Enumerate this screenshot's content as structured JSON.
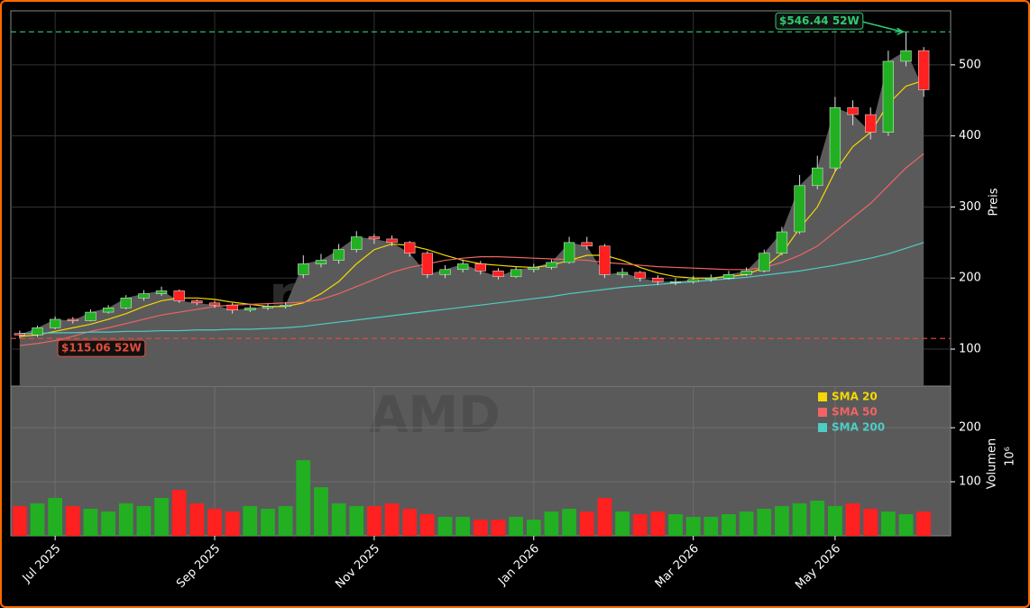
{
  "chart_data": {
    "type": "candlestick",
    "categories": [
      null,
      null,
      "Jul 2025",
      null,
      null,
      null,
      null,
      null,
      null,
      null,
      null,
      "Sep 2025",
      null,
      null,
      null,
      null,
      null,
      null,
      null,
      null,
      "Nov 2025",
      null,
      null,
      null,
      null,
      null,
      null,
      null,
      null,
      "Jan 2026",
      null,
      null,
      null,
      null,
      null,
      null,
      null,
      null,
      "Mar 2026",
      null,
      null,
      null,
      null,
      null,
      null,
      null,
      "May 2026",
      null,
      null,
      null,
      null,
      null
    ],
    "open": [
      122,
      120,
      130,
      142,
      140,
      152,
      158,
      172,
      178,
      182,
      168,
      165,
      162,
      155,
      158,
      160,
      205,
      220,
      225,
      240,
      258,
      255,
      250,
      235,
      205,
      212,
      220,
      210,
      202,
      212,
      215,
      222,
      250,
      245,
      205,
      208,
      200,
      195,
      195,
      198,
      200,
      205,
      210,
      235,
      265,
      330,
      355,
      440,
      430,
      405,
      505,
      520
    ],
    "high": [
      126,
      133,
      146,
      145,
      156,
      162,
      176,
      183,
      188,
      184,
      170,
      168,
      165,
      162,
      164,
      166,
      232,
      234,
      248,
      266,
      262,
      260,
      252,
      238,
      218,
      226,
      224,
      214,
      216,
      220,
      226,
      258,
      258,
      248,
      214,
      210,
      204,
      200,
      203,
      205,
      210,
      215,
      240,
      272,
      345,
      372,
      455,
      450,
      440,
      520,
      546.44,
      525
    ],
    "low": [
      115.06,
      117,
      128,
      136,
      139,
      150,
      156,
      168,
      175,
      165,
      162,
      158,
      150,
      152,
      155,
      157,
      200,
      215,
      220,
      236,
      248,
      245,
      230,
      200,
      200,
      208,
      205,
      198,
      200,
      208,
      212,
      220,
      240,
      200,
      200,
      195,
      190,
      190,
      192,
      195,
      198,
      203,
      208,
      232,
      262,
      325,
      350,
      415,
      395,
      400,
      498,
      455
    ],
    "close": [
      120,
      130,
      142,
      140,
      152,
      158,
      172,
      178,
      182,
      168,
      165,
      162,
      155,
      158,
      160,
      162,
      220,
      225,
      240,
      258,
      255,
      250,
      235,
      205,
      212,
      220,
      210,
      202,
      212,
      215,
      222,
      250,
      245,
      205,
      208,
      200,
      195,
      195,
      198,
      200,
      205,
      210,
      235,
      265,
      330,
      355,
      440,
      430,
      405,
      505,
      520,
      465
    ],
    "up_color": "#22b022",
    "down_color": "#ff2020",
    "area_color": "#5a5a5a",
    "series": [
      {
        "name": "SMA 20",
        "color": "#f5d800",
        "values": [
          118,
          120,
          125,
          130,
          135,
          142,
          150,
          160,
          168,
          172,
          172,
          170,
          166,
          163,
          160,
          160,
          165,
          178,
          195,
          220,
          240,
          248,
          246,
          240,
          232,
          225,
          220,
          218,
          216,
          215,
          218,
          225,
          232,
          232,
          225,
          215,
          207,
          202,
          200,
          200,
          202,
          205,
          215,
          235,
          270,
          300,
          350,
          385,
          405,
          445,
          470,
          478
        ]
      },
      {
        "name": "SMA 50",
        "color": "#f06464",
        "values": [
          105,
          108,
          112,
          118,
          125,
          130,
          136,
          142,
          148,
          152,
          156,
          160,
          162,
          163,
          164,
          165,
          166,
          170,
          178,
          188,
          198,
          208,
          215,
          220,
          225,
          228,
          230,
          230,
          229,
          228,
          227,
          226,
          225,
          222,
          220,
          218,
          216,
          215,
          214,
          213,
          212,
          212,
          215,
          222,
          232,
          245,
          265,
          285,
          305,
          330,
          355,
          375
        ]
      },
      {
        "name": "SMA 200",
        "color": "#4ecdc4",
        "values": [
          122,
          122,
          123,
          123,
          124,
          124,
          125,
          125,
          126,
          126,
          127,
          127,
          128,
          128,
          129,
          130,
          132,
          135,
          138,
          141,
          144,
          147,
          150,
          153,
          156,
          159,
          162,
          165,
          168,
          171,
          174,
          178,
          181,
          184,
          187,
          189,
          191,
          193,
          195,
          197,
          199,
          201,
          204,
          207,
          210,
          214,
          218,
          223,
          228,
          234,
          242,
          250
        ]
      }
    ],
    "ylim": [
      48,
      576
    ],
    "yticks": [
      100,
      200,
      300,
      400,
      500
    ],
    "ylabel": "Preis",
    "grid": true,
    "legend": "upper right",
    "reference_lines": [
      {
        "value": 546.44,
        "label": "$546.44 52W",
        "color": "#2ecc71"
      },
      {
        "value": 115.06,
        "label": "$115.06 52W",
        "color": "#e74c3c"
      }
    ],
    "watermarks": [
      "newsroom.com",
      "AMD"
    ],
    "volume": {
      "values": [
        55,
        60,
        70,
        55,
        50,
        45,
        60,
        55,
        70,
        85,
        60,
        50,
        45,
        55,
        50,
        55,
        140,
        90,
        60,
        55,
        55,
        60,
        50,
        40,
        35,
        35,
        30,
        30,
        35,
        30,
        45,
        50,
        45,
        70,
        45,
        40,
        45,
        40,
        35,
        35,
        40,
        45,
        50,
        55,
        60,
        65,
        55,
        60,
        50,
        45,
        40,
        45
      ],
      "ylim": [
        0,
        277
      ],
      "yticks": [
        100,
        200
      ],
      "ylabel": "Volumen",
      "scale_label": "10⁶"
    }
  }
}
